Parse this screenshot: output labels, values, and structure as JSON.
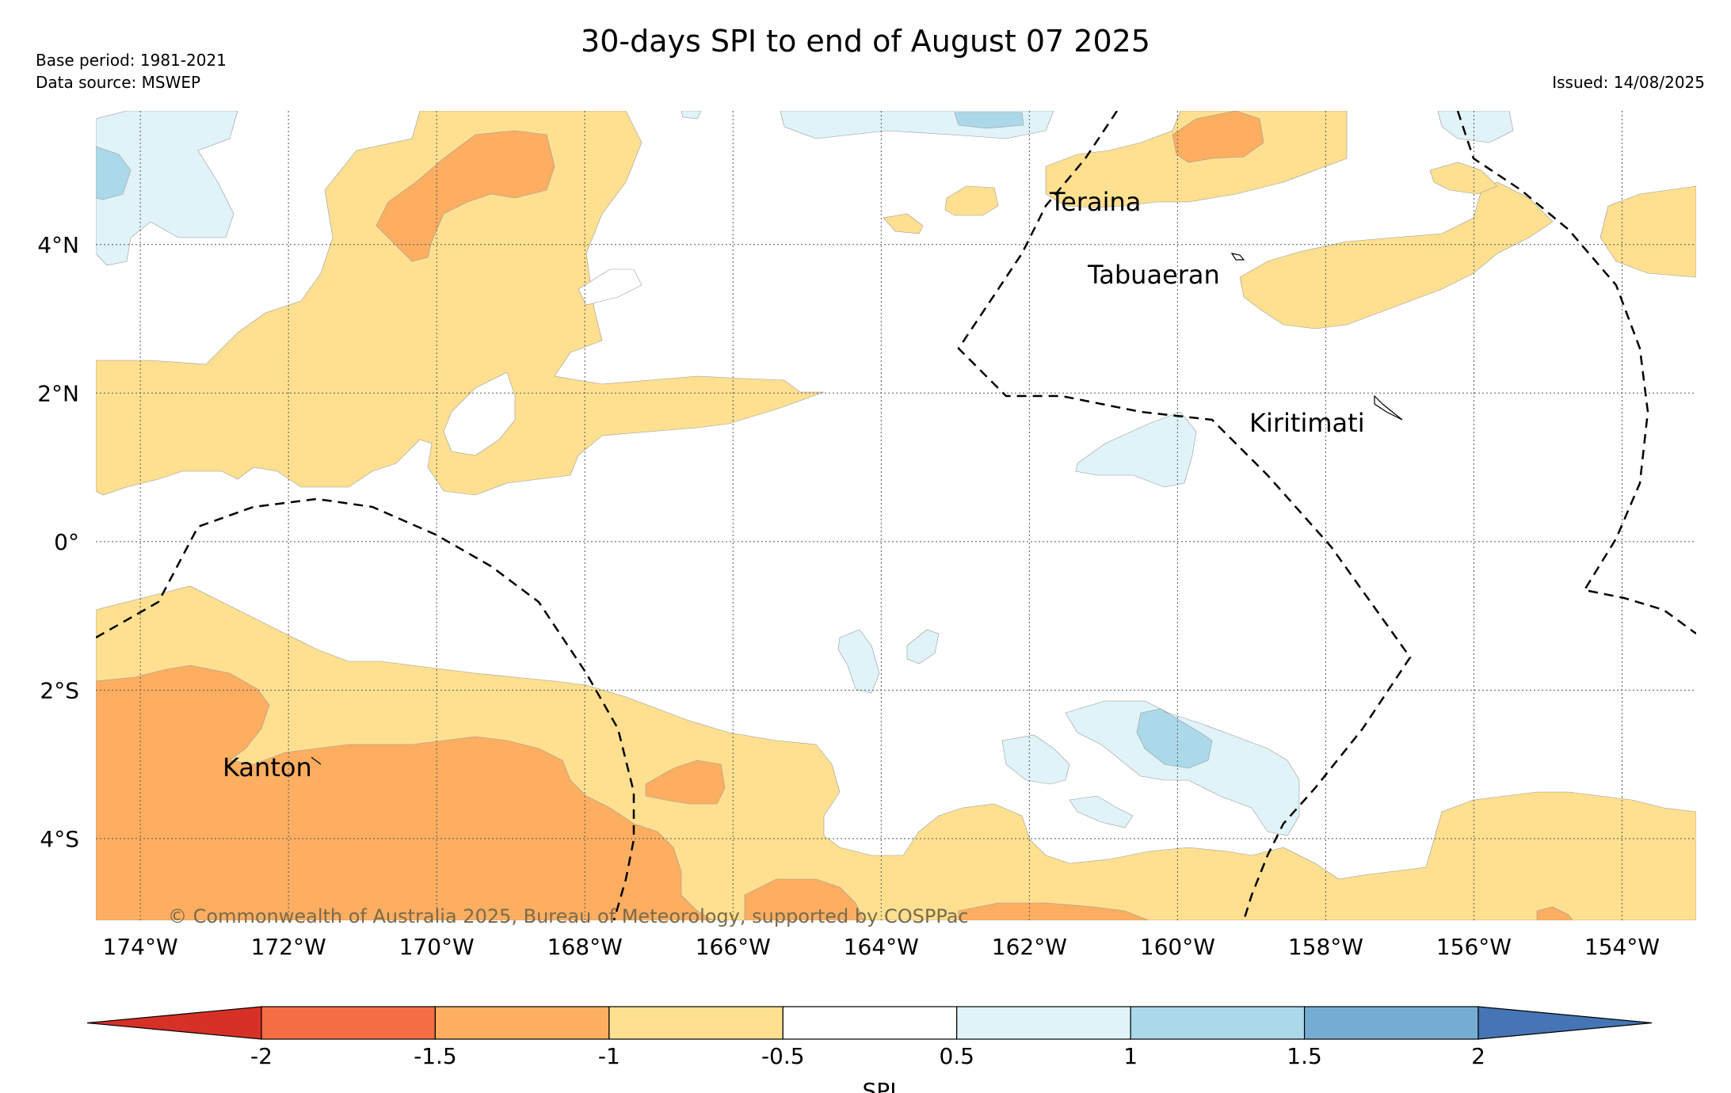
{
  "title": "30-days SPI to end of August 07 2025",
  "base_period": "Base period: 1981-2021",
  "data_source": "Data source: MSWEP",
  "issued": "Issued: 14/08/2025",
  "copyright": "© Commonwealth of Australia 2025, Bureau of Meteorology, supported by COSPPac",
  "lon_labels": [
    "174°W",
    "172°W",
    "170°W",
    "168°W",
    "166°W",
    "164°W",
    "162°W",
    "160°W",
    "158°W",
    "156°W",
    "154°W"
  ],
  "lat_labels": [
    "4°N",
    "2°N",
    "0°",
    "2°S",
    "4°S"
  ],
  "places": [
    {
      "name": "Teraina"
    },
    {
      "name": "Tabuaeran"
    },
    {
      "name": "Kiritimati"
    },
    {
      "name": "Kanton"
    }
  ],
  "colorbar": {
    "label": "SPI",
    "ticks": [
      "-2",
      "-1.5",
      "-1",
      "-0.5",
      "0.5",
      "1",
      "1.5",
      "2"
    ],
    "colors": {
      "below_-2": "#d73027",
      "-2_to_-1.5": "#f46d43",
      "-1.5_to_-1": "#fdae61",
      "-1_to_-0.5": "#fee090",
      "-0.5_to_0.5": "#ffffff",
      "0.5_to_1": "#e0f3f8",
      "1_to_1.5": "#abd9e9",
      "1.5_to_2": "#74add1",
      "above_2": "#4575b4"
    }
  }
}
